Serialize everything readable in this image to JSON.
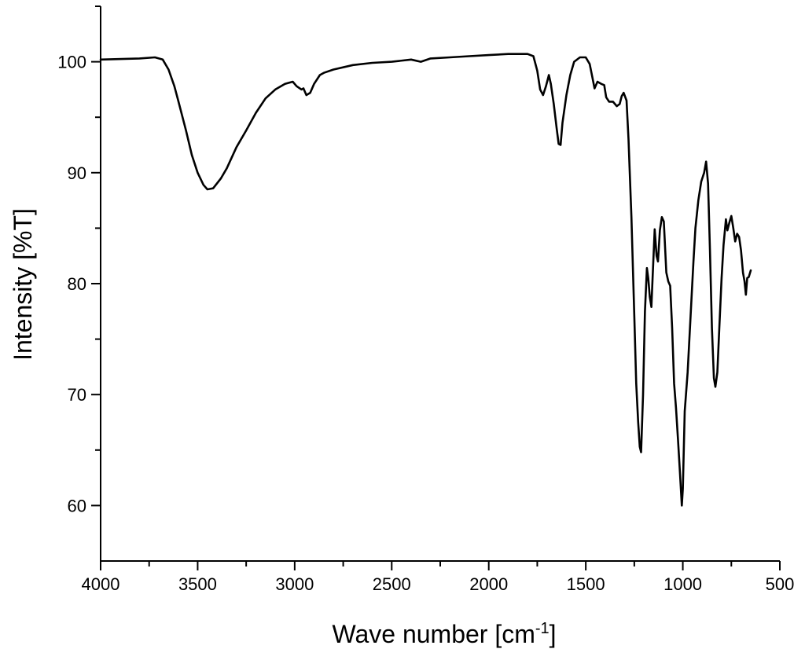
{
  "chart_data": {
    "type": "line",
    "title": "",
    "xlabel": "Wave number [cm",
    "xlabel_sup": "-1",
    "xlabel_end": "]",
    "ylabel": "Intensity [%T]",
    "xlim": [
      4000,
      500
    ],
    "x_reversed": true,
    "ylim": [
      55,
      105
    ],
    "x_ticks": [
      4000,
      3500,
      3000,
      2500,
      2000,
      1500,
      1000,
      500
    ],
    "y_ticks": [
      60,
      70,
      80,
      90,
      100
    ],
    "grid": false,
    "legend": "none",
    "series": [
      {
        "color": "#000000",
        "points": [
          [
            4000,
            100.2
          ],
          [
            3800,
            100.3
          ],
          [
            3720,
            100.4
          ],
          [
            3680,
            100.2
          ],
          [
            3650,
            99.3
          ],
          [
            3620,
            97.8
          ],
          [
            3600,
            96.5
          ],
          [
            3560,
            93.8
          ],
          [
            3530,
            91.6
          ],
          [
            3500,
            90.0
          ],
          [
            3470,
            88.9
          ],
          [
            3450,
            88.5
          ],
          [
            3420,
            88.6
          ],
          [
            3380,
            89.5
          ],
          [
            3350,
            90.4
          ],
          [
            3300,
            92.3
          ],
          [
            3250,
            93.8
          ],
          [
            3200,
            95.4
          ],
          [
            3150,
            96.7
          ],
          [
            3100,
            97.5
          ],
          [
            3050,
            98.0
          ],
          [
            3010,
            98.2
          ],
          [
            2990,
            97.8
          ],
          [
            2965,
            97.5
          ],
          [
            2955,
            97.6
          ],
          [
            2940,
            97.0
          ],
          [
            2920,
            97.2
          ],
          [
            2900,
            98.0
          ],
          [
            2870,
            98.8
          ],
          [
            2850,
            99.0
          ],
          [
            2800,
            99.3
          ],
          [
            2700,
            99.7
          ],
          [
            2600,
            99.9
          ],
          [
            2500,
            100.0
          ],
          [
            2400,
            100.2
          ],
          [
            2350,
            100.0
          ],
          [
            2300,
            100.3
          ],
          [
            2200,
            100.4
          ],
          [
            2100,
            100.5
          ],
          [
            2000,
            100.6
          ],
          [
            1900,
            100.7
          ],
          [
            1800,
            100.7
          ],
          [
            1770,
            100.5
          ],
          [
            1750,
            99.2
          ],
          [
            1735,
            97.5
          ],
          [
            1720,
            97.0
          ],
          [
            1705,
            97.8
          ],
          [
            1690,
            98.8
          ],
          [
            1680,
            98.0
          ],
          [
            1665,
            96.2
          ],
          [
            1650,
            94.0
          ],
          [
            1640,
            92.6
          ],
          [
            1630,
            92.5
          ],
          [
            1620,
            94.5
          ],
          [
            1600,
            97.0
          ],
          [
            1580,
            98.8
          ],
          [
            1560,
            100.0
          ],
          [
            1530,
            100.4
          ],
          [
            1500,
            100.4
          ],
          [
            1480,
            99.8
          ],
          [
            1465,
            98.5
          ],
          [
            1455,
            97.6
          ],
          [
            1440,
            98.2
          ],
          [
            1420,
            98.0
          ],
          [
            1405,
            97.9
          ],
          [
            1395,
            96.8
          ],
          [
            1380,
            96.4
          ],
          [
            1360,
            96.4
          ],
          [
            1340,
            96.0
          ],
          [
            1325,
            96.2
          ],
          [
            1315,
            96.9
          ],
          [
            1305,
            97.2
          ],
          [
            1290,
            96.5
          ],
          [
            1280,
            93.0
          ],
          [
            1265,
            86.0
          ],
          [
            1250,
            77.0
          ],
          [
            1240,
            71.0
          ],
          [
            1230,
            67.5
          ],
          [
            1222,
            65.3
          ],
          [
            1215,
            64.8
          ],
          [
            1205,
            70.0
          ],
          [
            1195,
            77.5
          ],
          [
            1185,
            81.4
          ],
          [
            1178,
            80.5
          ],
          [
            1170,
            78.8
          ],
          [
            1162,
            77.9
          ],
          [
            1155,
            80.8
          ],
          [
            1145,
            84.9
          ],
          [
            1135,
            82.5
          ],
          [
            1128,
            82.0
          ],
          [
            1118,
            84.8
          ],
          [
            1108,
            86.0
          ],
          [
            1098,
            85.6
          ],
          [
            1085,
            81.0
          ],
          [
            1075,
            80.2
          ],
          [
            1065,
            79.8
          ],
          [
            1055,
            76.0
          ],
          [
            1045,
            71.0
          ],
          [
            1035,
            68.8
          ],
          [
            1025,
            66.0
          ],
          [
            1015,
            63.0
          ],
          [
            1005,
            60.0
          ],
          [
            1000,
            61.5
          ],
          [
            990,
            68.5
          ],
          [
            975,
            72.0
          ],
          [
            960,
            77.0
          ],
          [
            945,
            82.0
          ],
          [
            935,
            85.0
          ],
          [
            920,
            87.5
          ],
          [
            905,
            89.2
          ],
          [
            890,
            90.0
          ],
          [
            880,
            91.0
          ],
          [
            870,
            89.0
          ],
          [
            860,
            83.0
          ],
          [
            850,
            76.0
          ],
          [
            840,
            71.5
          ],
          [
            832,
            70.7
          ],
          [
            822,
            72.0
          ],
          [
            812,
            76.0
          ],
          [
            800,
            80.5
          ],
          [
            790,
            83.5
          ],
          [
            778,
            85.8
          ],
          [
            770,
            84.8
          ],
          [
            760,
            85.5
          ],
          [
            750,
            86.1
          ],
          [
            740,
            85.0
          ],
          [
            730,
            83.8
          ],
          [
            720,
            84.5
          ],
          [
            710,
            84.2
          ],
          [
            700,
            83.0
          ],
          [
            690,
            81.0
          ],
          [
            682,
            80.2
          ],
          [
            675,
            79.0
          ],
          [
            668,
            80.5
          ],
          [
            660,
            80.6
          ],
          [
            650,
            81.2
          ]
        ]
      }
    ]
  }
}
